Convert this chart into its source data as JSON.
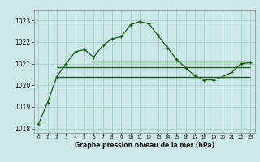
{
  "x": [
    0,
    1,
    2,
    3,
    4,
    5,
    6,
    7,
    8,
    9,
    10,
    11,
    12,
    13,
    14,
    15,
    16,
    17,
    18,
    19,
    20,
    21,
    22,
    23
  ],
  "y_main": [
    1018.2,
    1019.2,
    1020.4,
    1021.0,
    1021.55,
    1021.65,
    1021.3,
    1021.85,
    1022.15,
    1022.25,
    1022.8,
    1022.95,
    1022.85,
    1022.3,
    1021.75,
    1021.2,
    1020.8,
    1020.45,
    1020.25,
    1020.25,
    1020.4,
    1020.6,
    1021.0,
    1021.05
  ],
  "hline1_y": 1020.4,
  "hline1_xstart": 2,
  "hline1_xend": 23,
  "hline2_y": 1020.85,
  "hline2_xstart": 2,
  "hline2_xend": 23,
  "hline3_y": 1021.1,
  "hline3_xstart": 6,
  "hline3_xend": 23,
  "bg_color": "#cce8e8",
  "grid_color": "#aad0d0",
  "line_color": "#1a5c1a",
  "xlabel": "Graphe pression niveau de la mer (hPa)",
  "ylim_min": 1017.8,
  "ylim_max": 1023.5,
  "xlim_min": -0.5,
  "xlim_max": 23.5,
  "yticks": [
    1018,
    1019,
    1020,
    1021,
    1022,
    1023
  ],
  "xtick_labels": [
    "0",
    "1",
    "2",
    "3",
    "4",
    "5",
    "6",
    "7",
    "8",
    "9",
    "10",
    "11",
    "12",
    "13",
    "14",
    "15",
    "16",
    "17",
    "18",
    "19",
    "20",
    "21",
    "22",
    "23"
  ]
}
